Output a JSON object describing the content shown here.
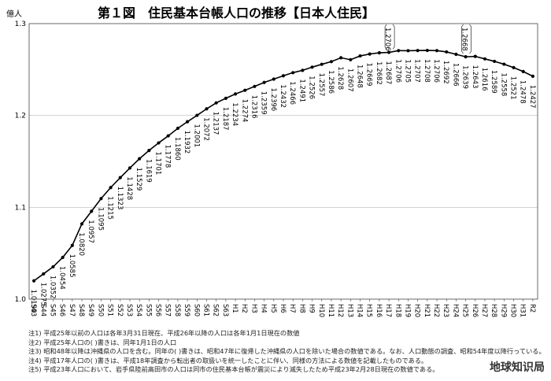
{
  "chart_data": {
    "type": "line",
    "title": "第１図　住民基本台帳人口の推移【日本人住民】",
    "unit_label": "億人",
    "ylim": [
      1.0,
      1.3
    ],
    "yticks": [
      "1.0",
      "1.1",
      "1.2",
      "1.3"
    ],
    "grid": true,
    "categories": [
      "S43",
      "S44",
      "S45",
      "S46",
      "S47",
      "S48",
      "S49",
      "S50",
      "S51",
      "S52",
      "S53",
      "S54",
      "S55",
      "S56",
      "S57",
      "S58",
      "S59",
      "S60",
      "S61",
      "S62",
      "S63",
      "H1",
      "H2",
      "H3",
      "H4",
      "H5",
      "H6",
      "H7",
      "H8",
      "H9",
      "H10",
      "H11",
      "H12",
      "H13",
      "H14",
      "H15",
      "H16",
      "H17",
      "H18",
      "H19",
      "H20",
      "H21",
      "H22",
      "H23",
      "H24",
      "H25",
      "H26",
      "H27",
      "H28",
      "H29",
      "H30",
      "H31",
      "R2"
    ],
    "series": [
      {
        "values": [
          1.0199,
          1.0275,
          1.0352,
          1.0454,
          1.0585,
          1.082,
          1.0957,
          1.1095,
          1.1215,
          1.1323,
          1.1428,
          1.1529,
          1.1619,
          1.1701,
          1.1778,
          1.186,
          1.1932,
          1.2001,
          1.2072,
          1.2137,
          1.2187,
          1.2234,
          1.2274,
          1.2316,
          1.2359,
          1.2396,
          1.2432,
          1.2466,
          1.2491,
          1.2526,
          1.2557,
          1.2586,
          1.2628,
          1.2607,
          1.2648,
          1.2669,
          1.2682,
          1.2687,
          1.2706,
          1.2705,
          1.2707,
          1.2708,
          1.2706,
          1.2692,
          1.2666,
          1.2639,
          1.2643,
          1.2616,
          1.2589,
          1.2558,
          1.2521,
          1.2478,
          1.2427
        ],
        "labels": [
          "1.0199",
          "1.0275",
          "1.0352",
          "1.0454",
          "1.0585",
          "1.0820",
          "1.0957",
          "1.1095",
          "1.1215",
          "1.1323",
          "1.1428",
          "1.1529",
          "1.1619",
          "1.1701",
          "1.1778",
          "1.1860",
          "1.1932",
          "1.2001",
          "1.2072",
          "1.2137",
          "1.2187",
          "1.2234",
          "1.2274",
          "1.2316",
          "1.2359",
          "1.2396",
          "1.2432",
          "1.2466",
          "1.2491",
          "1.2526",
          "1.2557",
          "1.2586",
          "1.2628",
          "1.2607",
          "1.2648",
          "1.2669",
          "1.2682",
          "1.2687",
          "1.2706",
          "1.2705",
          "1.2707",
          "1.2708",
          "1.2706",
          "1.2692",
          "1.2666",
          "1.2639",
          "1.2643",
          "1.2616",
          "1.2589",
          "1.2558",
          "1.2521",
          "1.2478",
          "1.2427"
        ]
      }
    ],
    "bracket_annotations": [
      {
        "category": "H17",
        "text": "1.2706"
      },
      {
        "category": "H25",
        "text": "1.2668"
      }
    ]
  },
  "notes": [
    "注1) 平成25年以前の人口は各年3月31日現在、平成26年以降の人口は各年1月1日現在の数値",
    "注2) 平成25年人口の( )書きは、同年1月1日の人口",
    "注3) 昭和48年以降は沖縄県の人口を含む。同年の( )書きは、昭和47年に復帰した沖縄県の人口を除いた場合の数値である。なお、人口動態の調査、昭和54年度以降行っている。",
    "注4) 平成17年人口の( )書きは、平成18年調査から転出者の取扱いを統一したことに伴い、同様の方法による数値を記載したものである。",
    "注5) 平成23年人口において、岩手県陸前高田市の人口は同市の住民基本台帳が震災により滅失したため平成23年2月28日現在の数値である。"
  ],
  "watermark": "地球知识局"
}
